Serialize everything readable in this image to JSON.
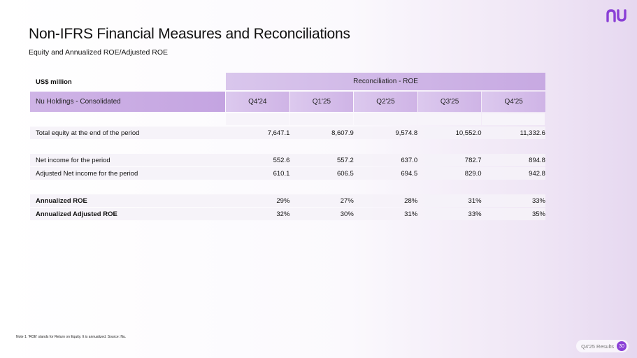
{
  "logo": {
    "text": "nu"
  },
  "title": "Non-IFRS Financial Measures and Reconciliations",
  "subtitle": "Equity and Annualized ROE/Adjusted ROE",
  "table": {
    "unit": "US$ million",
    "group_header": "Reconciliation - ROE",
    "row_header": "Nu Holdings - Consolidated",
    "columns": [
      "Q4'24",
      "Q1'25",
      "Q2'25",
      "Q3'25",
      "Q4'25"
    ],
    "rows": [
      {
        "label": "Total equity at the end of the period",
        "values": [
          "7,647.1",
          "8,607.9",
          "9,574.8",
          "10,552.0",
          "11,332.6"
        ]
      },
      {
        "label": "Net income for the period",
        "values": [
          "552.6",
          "557.2",
          "637.0",
          "782.7",
          "894.8"
        ]
      },
      {
        "label": "Adjusted Net income for the period",
        "values": [
          "610.1",
          "606.5",
          "694.5",
          "829.0",
          "942.8"
        ]
      },
      {
        "label": "Annualized ROE",
        "values": [
          "29%",
          "27%",
          "28%",
          "31%",
          "33%"
        ]
      },
      {
        "label": "Annualized Adjusted ROE",
        "values": [
          "32%",
          "30%",
          "31%",
          "33%",
          "35%"
        ]
      }
    ]
  },
  "note": "Note 1: 'ROE' stands for Return on Equity. It is annualized. Source: Nu.",
  "footer": {
    "label": "Q4'25 Results",
    "page": "30"
  },
  "colors": {
    "accent": "#8a3fd6",
    "header": "#cfb4e6"
  }
}
